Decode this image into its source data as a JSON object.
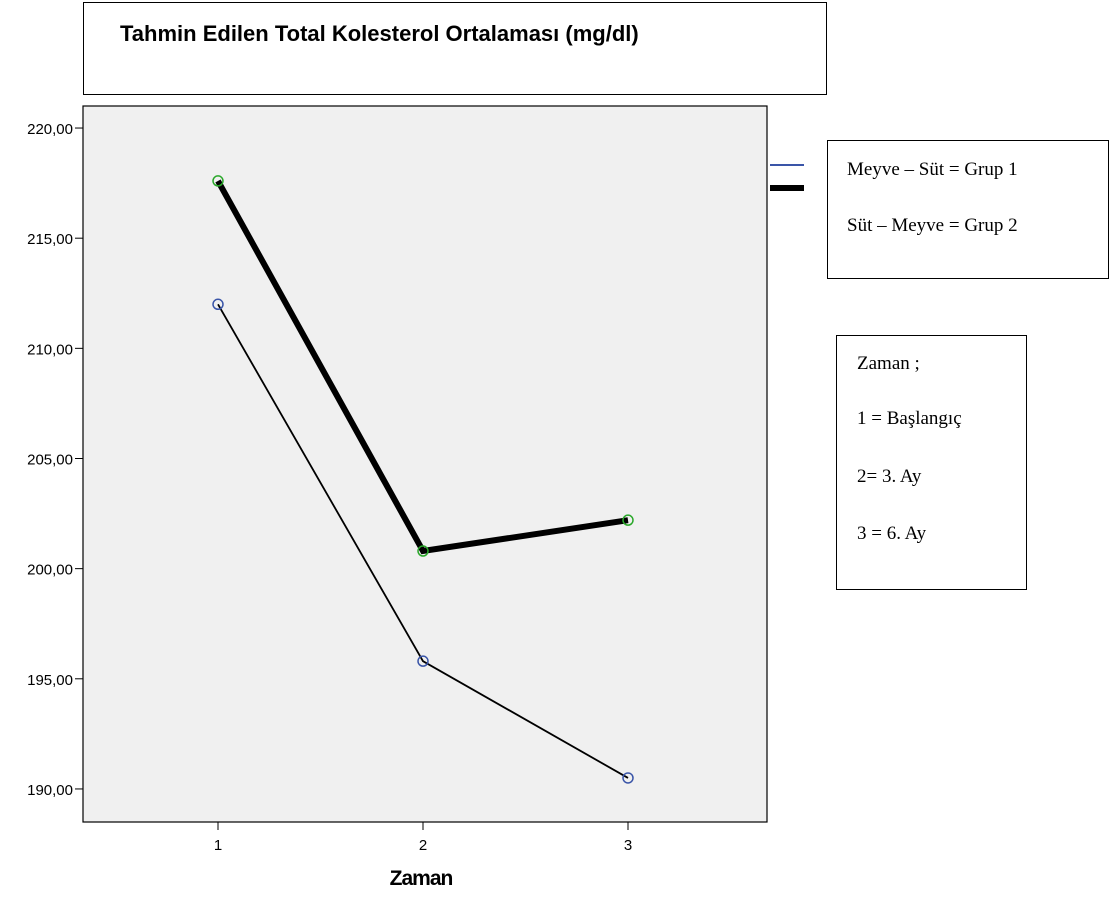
{
  "title_box": {
    "text": "Tahmin Edilen Total Kolesterol Ortalaması (mg/dl)"
  },
  "legend": {
    "entries": [
      {
        "label": "Meyve – Süt = Grup 1",
        "color": "#3a55a8",
        "line_style": "thin"
      },
      {
        "label": "Süt – Meyve = Grup 2",
        "color": "#000000",
        "line_style": "thick"
      }
    ]
  },
  "time_note": {
    "lines": [
      "Zaman ;",
      "1 = Başlangıç",
      "2=  3. Ay",
      "3 = 6. Ay"
    ]
  },
  "colors": {
    "plot_background": "#f0f0f0",
    "group1_marker": "#3a55a8",
    "group2_marker": "#2aa82a",
    "line": "#000000"
  },
  "chart_data": {
    "type": "line",
    "title": "",
    "xlabel": "Zaman",
    "ylabel": "",
    "categories": [
      "1",
      "2",
      "3"
    ],
    "ylim": [
      188.5,
      221.0
    ],
    "yticks": [
      190,
      195,
      200,
      205,
      210,
      215,
      220
    ],
    "ytick_labels": [
      "190,00",
      "195,00",
      "200,00",
      "205,00",
      "210,00",
      "215,00",
      "220,00"
    ],
    "grid": false,
    "series": [
      {
        "name": "Meyve – Süt = Grup 1",
        "values": [
          212.0,
          195.8,
          190.5
        ]
      },
      {
        "name": "Süt – Meyve = Grup 2",
        "values": [
          217.6,
          200.8,
          202.2
        ]
      }
    ]
  }
}
